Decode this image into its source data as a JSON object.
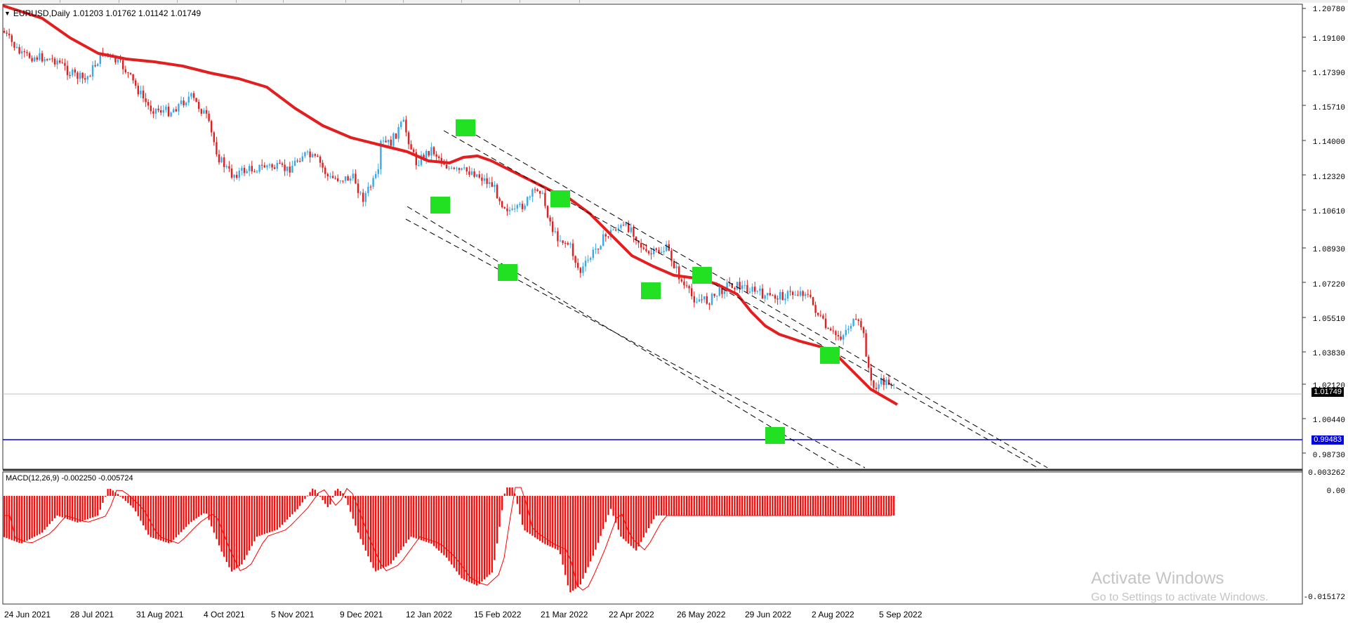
{
  "main_chart": {
    "symbol_label": "EURUSD,Daily",
    "ohlc": "1.01203 1.01762 1.01142 1.01749",
    "price_axis": [
      "1.20780",
      "1.19100",
      "1.17390",
      "1.15710",
      "1.14000",
      "1.12320",
      "1.10610",
      "1.08930",
      "1.07220",
      "1.05510",
      "1.03830",
      "1.02120",
      "1.00440",
      "0.98730"
    ],
    "current_price_tag": "1.01749",
    "horizontal_line_tag": "0.99483"
  },
  "macd": {
    "label": "MACD(12,26,9) -0.002250 -0.005724",
    "axis": [
      "0.003262",
      "0.00",
      "-0.015172"
    ]
  },
  "time_axis": [
    "24 Jun 2021",
    "28 Jul 2021",
    "31 Aug 2021",
    "4 Oct 2021",
    "5 Nov 2021",
    "9 Dec 2021",
    "12 Jan 2022",
    "15 Feb 2022",
    "21 Mar 2022",
    "22 Apr 2022",
    "26 May 2022",
    "29 Jun 2022",
    "2 Aug 2022",
    "5 Sep 2022"
  ],
  "watermark": {
    "line1": "Activate Windows",
    "line2": "Go to Settings to activate Windows."
  },
  "colors": {
    "bull": "#3aa9e8",
    "bear": "#e02020",
    "ma": "#e31e1e",
    "marker": "#22e022",
    "hline": "#0000e0",
    "macd": "#ff0000"
  },
  "chart_data": [
    {
      "type": "line",
      "title": "EURUSD,Daily",
      "xlabel": "",
      "ylabel": "",
      "x": [
        "24 Jun 2021",
        "28 Jul 2021",
        "31 Aug 2021",
        "4 Oct 2021",
        "5 Nov 2021",
        "9 Dec 2021",
        "12 Jan 2022",
        "15 Feb 2022",
        "21 Mar 2022",
        "22 Apr 2022",
        "26 May 2022",
        "29 Jun 2022",
        "2 Aug 2022",
        "5 Sep 2022"
      ],
      "series": [
        {
          "values": [
            1.194,
            1.18,
            1.182,
            1.16,
            1.158,
            1.128,
            1.144,
            1.13,
            1.108,
            1.07,
            1.07,
            1.04,
            1.025,
            1.017
          ]
        }
      ],
      "ylim": [
        0.98,
        1.208
      ],
      "horizontal_line": 0.99483
    },
    {
      "type": "bar",
      "title": "MACD(12,26,9) -0.002250 -0.005724",
      "ylim": [
        -0.015172,
        0.003262
      ]
    }
  ]
}
